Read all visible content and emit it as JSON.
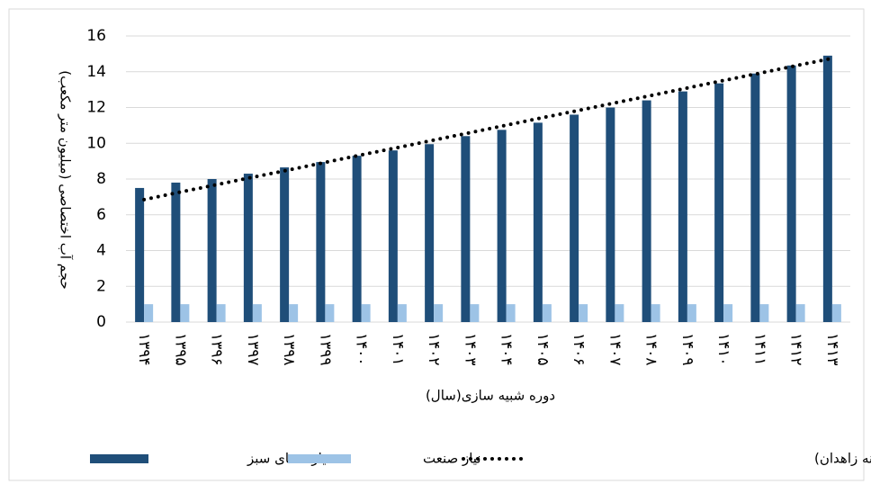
{
  "chart_data": {
    "type": "bar",
    "ylabel": "حجم آب اختصاصی (میلیون متر مکعب)",
    "xlabel": "دوره شبیه سازی(سال)",
    "categories": [
      "۱۳۹۴",
      "۱۳۹۵",
      "۱۳۹۶",
      "۱۳۹۷",
      "۱۳۹۸",
      "۱۳۹۹",
      "۱۴۰۰",
      "۱۴۰۱",
      "۱۴۰۲",
      "۱۴۰۳",
      "۱۴۰۴",
      "۱۴۰۵",
      "۱۴۰۶",
      "۱۴۰۷",
      "۱۴۰۸",
      "۱۴۰۹",
      "۱۴۱۰",
      "۱۴۱۱",
      "۱۴۱۲",
      "۱۴۱۳"
    ],
    "series": [
      {
        "name": "نیاز فضای سبز",
        "type": "bar",
        "color": "#1f4e79",
        "values": [
          7.5,
          7.8,
          8.0,
          8.3,
          8.65,
          8.95,
          9.3,
          9.6,
          9.95,
          10.4,
          10.75,
          11.15,
          11.6,
          12.0,
          12.4,
          12.9,
          13.35,
          13.9,
          14.35,
          14.9
        ]
      },
      {
        "name": "نیاز صنعت",
        "type": "bar",
        "color": "#9dc3e6",
        "values": [
          1,
          1,
          1,
          1,
          1,
          1,
          1,
          1,
          1,
          1,
          1,
          1,
          1,
          1,
          1,
          1,
          1,
          1,
          1,
          1
        ]
      },
      {
        "name": "قابل تزریق به آبخوان (تصفیه خانه زاهدان)",
        "type": "line",
        "color": "#000000",
        "dash": "dotted",
        "values": [
          6.85,
          7.27,
          7.68,
          8.1,
          8.51,
          8.93,
          9.35,
          9.76,
          10.18,
          10.59,
          11.01,
          11.43,
          11.84,
          12.26,
          12.67,
          13.09,
          13.51,
          13.92,
          14.34,
          14.75
        ]
      }
    ],
    "ylim": [
      0,
      16
    ],
    "yticks": [
      0,
      2,
      4,
      6,
      8,
      10,
      12,
      14,
      16
    ],
    "grid": true,
    "legend": "bottom"
  }
}
